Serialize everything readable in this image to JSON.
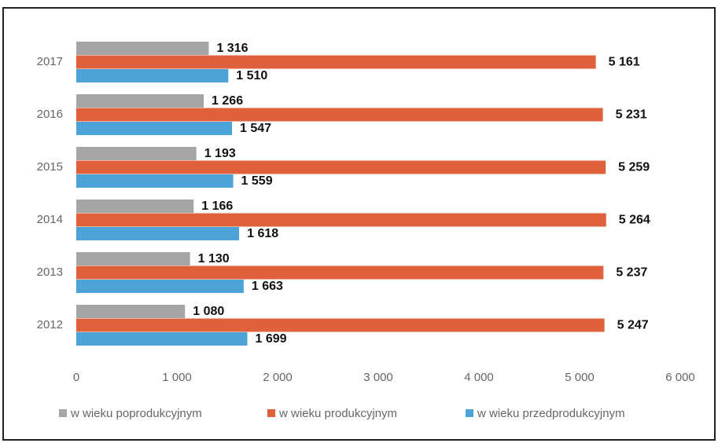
{
  "chart_data": {
    "type": "hbar",
    "categories": [
      "2017",
      "2016",
      "2015",
      "2014",
      "2013",
      "2012"
    ],
    "series": [
      {
        "name": "w wieku poprodukcyjnym",
        "color": "#a5a5a5",
        "values": [
          1316,
          1266,
          1193,
          1166,
          1130,
          1080
        ],
        "value_labels": [
          "1 316",
          "1 266",
          "1 193",
          "1 166",
          "1 130",
          "1 080"
        ]
      },
      {
        "name": "w wieku produkcyjnym",
        "color": "#e0603c",
        "values": [
          5161,
          5231,
          5259,
          5264,
          5237,
          5247
        ],
        "value_labels": [
          "5 161",
          "5 231",
          "5 259",
          "5 264",
          "5 237",
          "5 247"
        ]
      },
      {
        "name": "w wieku przedprodukcyjnym",
        "color": "#4ba3d8",
        "values": [
          1510,
          1547,
          1559,
          1618,
          1663,
          1699
        ],
        "value_labels": [
          "1 510",
          "1 547",
          "1 559",
          "1 618",
          "1 663",
          "1 699"
        ]
      }
    ],
    "xlim": [
      0,
      6000
    ],
    "xticks": [
      0,
      {
        "value": 1000,
        "label": "1 000"
      },
      {
        "value": 2000,
        "label": "2 000"
      },
      {
        "value": 3000,
        "label": "3 000"
      },
      {
        "value": 4000,
        "label": "4 000"
      },
      {
        "value": 5000,
        "label": "5 000"
      },
      {
        "value": 6000,
        "label": "6 000"
      }
    ],
    "legend": "bottom"
  }
}
